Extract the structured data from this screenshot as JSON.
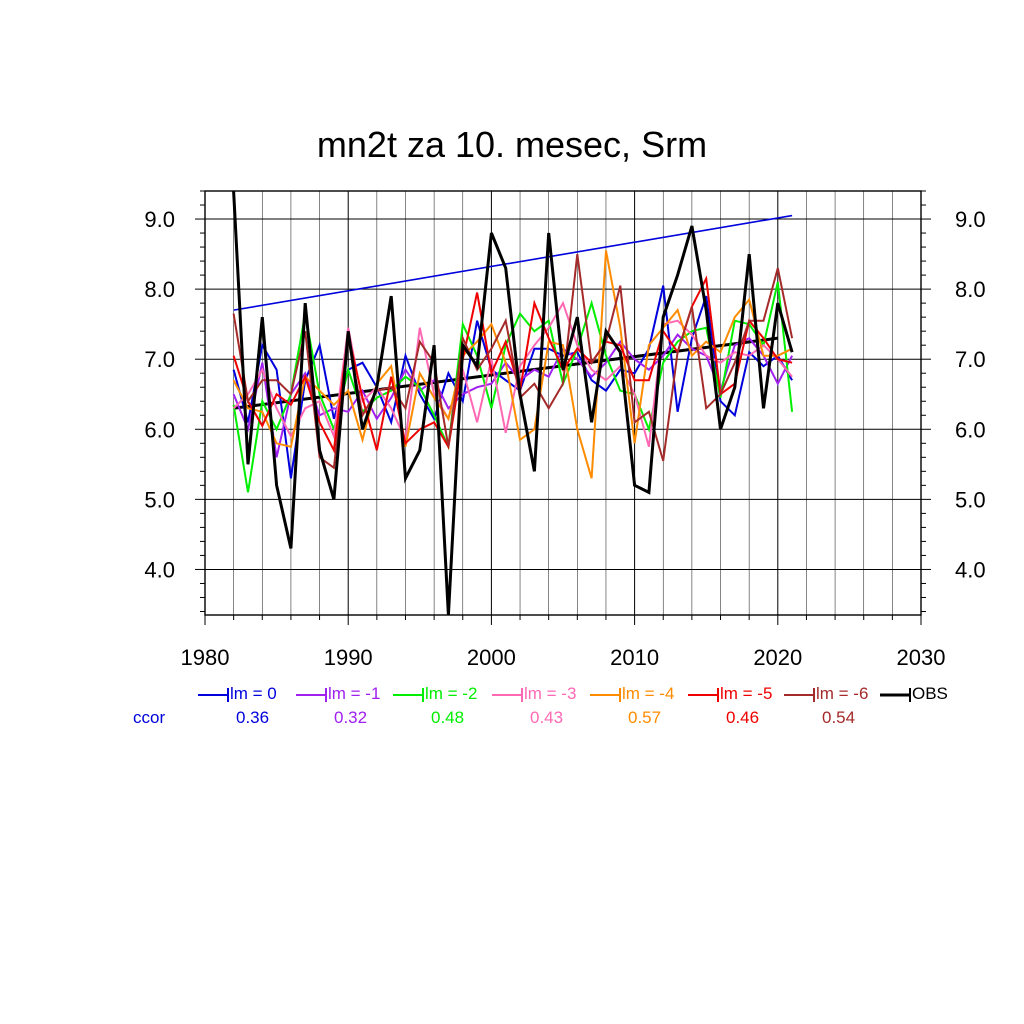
{
  "chart_data": {
    "type": "line",
    "title": "mn2t za 10. mesec, Srm",
    "xlim": [
      1980,
      2030
    ],
    "ylim": [
      3.35,
      9.4
    ],
    "x_ticks": [
      "1980",
      "1990",
      "2000",
      "2010",
      "2020",
      "2030"
    ],
    "y_ticks": [
      "4.0",
      "5.0",
      "6.0",
      "7.0",
      "8.0",
      "9.0"
    ],
    "grid": "on",
    "legend_placement": "below plot",
    "ccor_label": "ccor",
    "x": [
      1982,
      1983,
      1984,
      1985,
      1986,
      1987,
      1988,
      1989,
      1990,
      1991,
      1992,
      1993,
      1994,
      1995,
      1996,
      1997,
      1998,
      1999,
      2000,
      2001,
      2002,
      2003,
      2004,
      2005,
      2006,
      2007,
      2008,
      2009,
      2010,
      2011,
      2012,
      2013,
      2014,
      2015,
      2016,
      2017,
      2018,
      2019,
      2020,
      2021
    ],
    "series": [
      {
        "name": "lm = 0",
        "color": "#0000dd",
        "ccor": "0.36",
        "values": [
          6.85,
          6.1,
          7.2,
          6.85,
          5.3,
          6.7,
          7.2,
          6.15,
          6.85,
          6.95,
          6.6,
          6.1,
          7.05,
          6.5,
          6.15,
          6.8,
          6.4,
          7.55,
          6.85,
          6.7,
          6.55,
          7.15,
          7.15,
          7.05,
          7.1,
          6.7,
          6.55,
          6.85,
          6.8,
          7.15,
          8.05,
          6.25,
          7.3,
          7.9,
          6.4,
          6.2,
          7.1,
          6.9,
          7.05,
          6.7
        ]
      },
      {
        "name": "lm = -1",
        "color": "#a020f0",
        "ccor": "0.32",
        "values": [
          6.5,
          6.0,
          6.95,
          5.6,
          6.5,
          6.8,
          6.2,
          6.3,
          6.25,
          6.55,
          6.15,
          6.45,
          6.85,
          6.55,
          6.7,
          6.3,
          6.5,
          6.6,
          6.65,
          6.95,
          6.7,
          6.85,
          6.75,
          7.15,
          7.0,
          6.75,
          6.95,
          7.25,
          7.0,
          6.85,
          7.05,
          7.35,
          7.15,
          7.05,
          6.55,
          7.2,
          7.3,
          7.05,
          6.65,
          7.05
        ]
      },
      {
        "name": "lm = -2",
        "color": "#00ee00",
        "ccor": "0.48",
        "values": [
          6.35,
          5.1,
          6.4,
          6.0,
          6.5,
          7.65,
          6.5,
          6.0,
          6.85,
          6.25,
          6.45,
          6.55,
          6.75,
          6.6,
          6.2,
          5.75,
          7.5,
          7.05,
          6.3,
          7.2,
          7.65,
          7.4,
          7.55,
          6.65,
          7.15,
          7.8,
          7.05,
          6.55,
          6.5,
          6.0,
          6.95,
          7.25,
          7.4,
          7.45,
          6.45,
          7.55,
          7.5,
          7.2,
          8.1,
          6.25
        ]
      },
      {
        "name": "lm = -3",
        "color": "#ff69b4",
        "ccor": "0.43",
        "values": [
          6.3,
          6.5,
          6.85,
          6.3,
          5.9,
          6.3,
          6.4,
          5.9,
          7.45,
          6.4,
          6.6,
          6.3,
          5.85,
          7.45,
          6.5,
          6.15,
          6.85,
          6.1,
          7.0,
          5.95,
          6.9,
          7.2,
          7.45,
          7.8,
          7.2,
          6.85,
          6.7,
          6.9,
          6.5,
          5.75,
          7.5,
          7.55,
          7.35,
          7.05,
          6.95,
          7.1,
          7.05,
          7.2,
          7.0,
          6.75
        ]
      },
      {
        "name": "lm = -4",
        "color": "#ff8c00",
        "ccor": "0.57",
        "values": [
          6.7,
          6.3,
          6.25,
          5.8,
          5.75,
          6.75,
          6.55,
          6.35,
          6.55,
          5.85,
          6.65,
          6.9,
          5.75,
          6.8,
          6.45,
          6.15,
          7.05,
          7.25,
          7.5,
          6.95,
          5.85,
          6.0,
          7.25,
          7.2,
          6.0,
          5.3,
          8.55,
          7.45,
          5.8,
          7.2,
          7.45,
          7.7,
          7.05,
          7.25,
          7.1,
          7.6,
          7.85,
          7.05,
          7.05,
          7.15
        ]
      },
      {
        "name": "lm = -5",
        "color": "#ee0000",
        "ccor": "0.46",
        "values": [
          7.05,
          6.4,
          6.05,
          6.5,
          6.35,
          6.75,
          6.1,
          5.7,
          7.35,
          6.45,
          5.7,
          6.75,
          5.8,
          6.0,
          6.1,
          5.75,
          7.0,
          7.95,
          6.8,
          7.25,
          6.55,
          7.8,
          7.3,
          6.85,
          7.15,
          6.95,
          7.25,
          7.2,
          6.7,
          6.7,
          7.4,
          7.1,
          7.75,
          8.15,
          6.5,
          6.65,
          7.55,
          7.3,
          7.0,
          6.95
        ]
      },
      {
        "name": "lm = -6",
        "color": "#a52a2a",
        "ccor": "0.54",
        "values": [
          7.65,
          6.4,
          6.7,
          6.7,
          6.5,
          7.4,
          5.6,
          5.45,
          7.3,
          6.2,
          6.55,
          6.6,
          6.3,
          7.25,
          6.95,
          5.75,
          7.3,
          6.85,
          7.15,
          7.55,
          6.45,
          6.65,
          6.3,
          6.65,
          8.5,
          6.95,
          7.25,
          8.05,
          6.1,
          6.25,
          5.55,
          7.1,
          7.75,
          6.3,
          6.5,
          6.95,
          7.55,
          7.55,
          8.3,
          7.3
        ]
      },
      {
        "name": "OBS",
        "color": "#000000",
        "ccor": "",
        "values": [
          9.4,
          5.5,
          7.6,
          5.2,
          4.3,
          7.8,
          5.7,
          5.0,
          7.4,
          6.0,
          6.6,
          7.9,
          5.3,
          5.7,
          7.2,
          3.35,
          7.2,
          6.9,
          8.8,
          8.3,
          6.5,
          5.4,
          8.8,
          6.85,
          7.6,
          6.1,
          7.4,
          7.1,
          5.2,
          5.1,
          7.6,
          8.2,
          8.9,
          7.7,
          6.0,
          6.6,
          8.5,
          6.3,
          7.8,
          7.1
        ]
      }
    ],
    "trend_lines": [
      {
        "color": "#0000dd",
        "x": [
          1982,
          2021
        ],
        "y": [
          7.7,
          9.05
        ]
      },
      {
        "color": "#000000",
        "x": [
          1982,
          2020
        ],
        "y": [
          6.3,
          7.3
        ]
      }
    ]
  }
}
